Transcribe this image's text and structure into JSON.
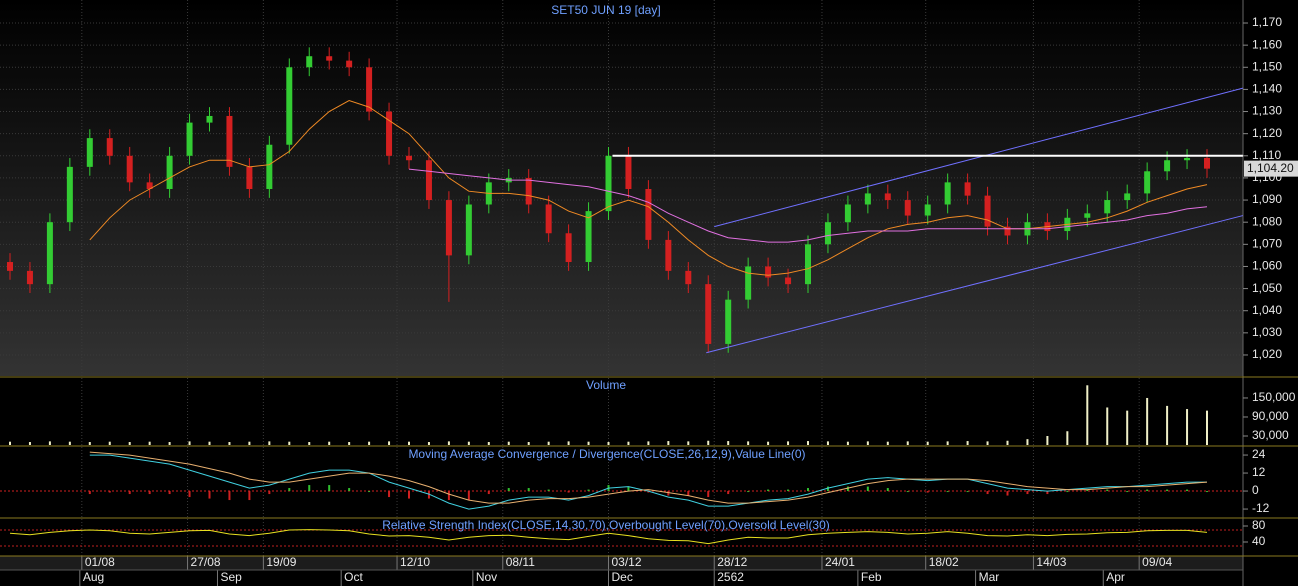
{
  "chart_data": [
    {
      "type": "candlestick",
      "title": "SET50 JUN 19   [day]",
      "open": [
        1062,
        1058,
        1052,
        1080,
        1105,
        1118,
        1110,
        1098,
        1095,
        1110,
        1125,
        1128,
        1105,
        1095,
        1115,
        1150,
        1155,
        1153,
        1150,
        1130,
        1110,
        1108,
        1090,
        1065,
        1088,
        1098,
        1100,
        1088,
        1075,
        1062,
        1085,
        1110,
        1095,
        1072,
        1058,
        1052,
        1025,
        1045,
        1060,
        1055,
        1052,
        1070,
        1080,
        1088,
        1093,
        1090,
        1083,
        1088,
        1098,
        1092,
        1078,
        1074,
        1080,
        1076,
        1082,
        1084,
        1090,
        1093,
        1103,
        1108,
        1109
      ],
      "high": [
        1066,
        1062,
        1084,
        1109,
        1122,
        1122,
        1114,
        1102,
        1114,
        1129,
        1132,
        1132,
        1109,
        1119,
        1154,
        1159,
        1159,
        1157,
        1154,
        1134,
        1114,
        1112,
        1094,
        1092,
        1102,
        1104,
        1104,
        1092,
        1079,
        1089,
        1114,
        1114,
        1099,
        1076,
        1062,
        1056,
        1049,
        1064,
        1064,
        1059,
        1074,
        1084,
        1092,
        1097,
        1097,
        1094,
        1092,
        1102,
        1102,
        1096,
        1082,
        1084,
        1084,
        1086,
        1088,
        1094,
        1097,
        1107,
        1112,
        1113,
        1113
      ],
      "low": [
        1054,
        1048,
        1048,
        1076,
        1101,
        1106,
        1094,
        1091,
        1091,
        1106,
        1121,
        1101,
        1091,
        1091,
        1111,
        1146,
        1149,
        1146,
        1126,
        1106,
        1104,
        1086,
        1044,
        1061,
        1084,
        1094,
        1084,
        1071,
        1058,
        1058,
        1081,
        1091,
        1068,
        1054,
        1048,
        1021,
        1021,
        1041,
        1051,
        1048,
        1048,
        1066,
        1076,
        1084,
        1086,
        1079,
        1079,
        1084,
        1088,
        1074,
        1070,
        1070,
        1072,
        1072,
        1078,
        1080,
        1086,
        1089,
        1099,
        1104,
        1100
      ],
      "close": [
        1058,
        1052,
        1080,
        1105,
        1118,
        1110,
        1098,
        1095,
        1110,
        1125,
        1128,
        1105,
        1095,
        1115,
        1150,
        1155,
        1153,
        1150,
        1130,
        1110,
        1108,
        1090,
        1065,
        1088,
        1098,
        1100,
        1088,
        1075,
        1062,
        1085,
        1110,
        1095,
        1072,
        1058,
        1052,
        1025,
        1045,
        1060,
        1055,
        1052,
        1070,
        1080,
        1088,
        1093,
        1090,
        1083,
        1088,
        1098,
        1092,
        1078,
        1074,
        1080,
        1076,
        1082,
        1084,
        1090,
        1093,
        1103,
        1108,
        1109,
        1104.2
      ],
      "up_color": "#33cc33",
      "down_color": "#d42020",
      "series": [
        {
          "color": "#f08a24",
          "values": [
            null,
            null,
            null,
            null,
            1072,
            1082,
            1090,
            1095,
            1100,
            1105,
            1108,
            1108,
            1105,
            1106,
            1112,
            1122,
            1130,
            1135,
            1132,
            1126,
            1120,
            1110,
            1100,
            1094,
            1093,
            1093,
            1092,
            1090,
            1085,
            1082,
            1087,
            1090,
            1087,
            1080,
            1072,
            1065,
            1060,
            1057,
            1056,
            1057,
            1059,
            1063,
            1068,
            1073,
            1077,
            1079,
            1080,
            1082,
            1083,
            1081,
            1077,
            1077,
            1078,
            1079,
            1080,
            1082,
            1085,
            1089,
            1092,
            1095,
            1097
          ]
        },
        {
          "color": "#e070e0",
          "values": [
            null,
            null,
            null,
            null,
            null,
            null,
            null,
            null,
            null,
            null,
            null,
            null,
            null,
            null,
            null,
            null,
            null,
            null,
            null,
            null,
            1104,
            1103,
            1102,
            1101,
            1100,
            1099,
            1099,
            1098,
            1097,
            1096,
            1094,
            1092,
            1089,
            1084,
            1080,
            1076,
            1073,
            1072,
            1071,
            1071,
            1072,
            1074,
            1075,
            1076,
            1076,
            1076,
            1077,
            1077,
            1077,
            1077,
            1077,
            1077,
            1077,
            1078,
            1079,
            1080,
            1081,
            1083,
            1084,
            1086,
            1087
          ]
        }
      ],
      "trendlines": [
        {
          "color": "#7070ff",
          "points": [
            [
              35.3,
              1078
            ],
            [
              61.8,
              1140.6
            ]
          ]
        },
        {
          "color": "#7070ff",
          "points": [
            [
              34.9,
              1021
            ],
            [
              61.8,
              1083
            ]
          ]
        },
        {
          "color": "#ffffff",
          "points": [
            [
              30.2,
              1110
            ],
            [
              61.8,
              1110
            ]
          ]
        }
      ],
      "last_price": {
        "value": 1104.2,
        "label": "1,104.20"
      },
      "ylim": [
        1010.5,
        1180.4
      ],
      "yticks": [
        {
          "value": 1020,
          "label": "1,020"
        },
        {
          "value": 1030,
          "label": "1,030"
        },
        {
          "value": 1040,
          "label": "1,040"
        },
        {
          "value": 1050,
          "label": "1,050"
        },
        {
          "value": 1060,
          "label": "1,060"
        },
        {
          "value": 1070,
          "label": "1,070"
        },
        {
          "value": 1080,
          "label": "1,080"
        },
        {
          "value": 1090,
          "label": "1,090"
        },
        {
          "value": 1100,
          "label": "1,100"
        },
        {
          "value": 1110,
          "label": "1,110"
        },
        {
          "value": 1120,
          "label": "1,120"
        },
        {
          "value": 1130,
          "label": "1,130"
        },
        {
          "value": 1140,
          "label": "1,140"
        },
        {
          "value": 1150,
          "label": "1,150"
        },
        {
          "value": 1160,
          "label": "1,160"
        },
        {
          "value": 1170,
          "label": "1,170"
        }
      ],
      "xticks": [
        {
          "value": 3.6,
          "label": "01/08"
        },
        {
          "value": 8.9,
          "label": "27/08"
        },
        {
          "value": 12.7,
          "label": "19/09"
        },
        {
          "value": 19.4,
          "label": "12/10"
        },
        {
          "value": 24.7,
          "label": "08/11"
        },
        {
          "value": 30.0,
          "label": "03/12"
        },
        {
          "value": 35.3,
          "label": "28/12"
        },
        {
          "value": 40.7,
          "label": "24/01"
        },
        {
          "value": 45.9,
          "label": "18/02"
        },
        {
          "value": 51.3,
          "label": "14/03"
        },
        {
          "value": 56.6,
          "label": "09/04"
        }
      ],
      "xticks_months": [
        {
          "value": 3.5,
          "label": "Aug"
        },
        {
          "value": 10.4,
          "label": "Sep"
        },
        {
          "value": 16.6,
          "label": "Oct"
        },
        {
          "value": 23.2,
          "label": "Nov"
        },
        {
          "value": 30.0,
          "label": "Dec"
        },
        {
          "value": 35.3,
          "label": "2562"
        },
        {
          "value": 42.5,
          "label": "Feb"
        },
        {
          "value": 48.4,
          "label": "Mar"
        },
        {
          "value": 54.8,
          "label": "Apr"
        }
      ],
      "grid": true
    },
    {
      "type": "bar",
      "title": "Volume",
      "color": "#f0f0c8",
      "values": [
        12000,
        11000,
        13000,
        12000,
        11000,
        12000,
        11000,
        12000,
        11000,
        13000,
        12000,
        11000,
        12000,
        13000,
        12000,
        11000,
        12000,
        11000,
        12000,
        13000,
        12000,
        11000,
        13000,
        12000,
        11000,
        12000,
        11000,
        12000,
        13000,
        12000,
        11000,
        12000,
        13000,
        14000,
        13000,
        15000,
        14000,
        13000,
        12000,
        13000,
        14000,
        13000,
        12000,
        13000,
        12000,
        13000,
        12000,
        13000,
        14000,
        13000,
        15000,
        20000,
        30000,
        45000,
        190000,
        120000,
        110000,
        150000,
        125000,
        115000,
        110000
      ],
      "ylim": [
        1600,
        213000
      ],
      "yticks": [
        {
          "value": 30000,
          "label": "30,000"
        },
        {
          "value": 90000,
          "label": "90,000"
        },
        {
          "value": 150000,
          "label": "150,000"
        }
      ]
    },
    {
      "type": "macd",
      "title": "Moving Average Convergence / Divergence(CLOSE,26,12,9),Value Line(0)",
      "series": [
        {
          "color": "#40d0e0",
          "values": [
            null,
            null,
            null,
            null,
            24,
            24,
            22,
            20,
            18,
            14,
            10,
            6,
            2,
            4,
            8,
            12,
            14,
            14,
            12,
            6,
            2,
            -2,
            -8,
            -12,
            -10,
            -6,
            -4,
            -4,
            -6,
            -3,
            2,
            3,
            0,
            -4,
            -6,
            -10,
            -10,
            -8,
            -6,
            -5,
            -2,
            2,
            5,
            8,
            9,
            8,
            7,
            8,
            8,
            5,
            2,
            1,
            0,
            1,
            2,
            3,
            3,
            4,
            5,
            6,
            6
          ]
        },
        {
          "color": "#e8b070",
          "values": [
            null,
            null,
            null,
            null,
            26,
            25,
            24,
            22,
            20,
            18,
            15,
            12,
            8,
            6,
            6,
            8,
            10,
            12,
            12,
            10,
            7,
            3,
            -2,
            -6,
            -8,
            -8,
            -6,
            -5,
            -5,
            -4,
            -2,
            0,
            1,
            -1,
            -3,
            -6,
            -8,
            -8,
            -7,
            -6,
            -4,
            -1,
            2,
            5,
            7,
            8,
            8,
            8,
            8,
            7,
            5,
            3,
            2,
            1,
            1,
            2,
            3,
            3,
            4,
            5,
            6
          ]
        }
      ],
      "histogram": [
        null,
        null,
        null,
        null,
        -2,
        -1,
        -2,
        -2,
        -2,
        -4,
        -5,
        -6,
        -6,
        -2,
        2,
        4,
        4,
        2,
        0,
        -4,
        -5,
        -5,
        -6,
        -6,
        -2,
        2,
        2,
        1,
        -1,
        1,
        4,
        3,
        -1,
        -3,
        -3,
        -4,
        -2,
        0,
        1,
        1,
        2,
        3,
        3,
        3,
        2,
        0,
        -1,
        0,
        0,
        -2,
        -3,
        -2,
        -2,
        0,
        1,
        1,
        0,
        1,
        1,
        1,
        0
      ],
      "up_color": "#30c030",
      "down_color": "#d02020",
      "value_line": 0,
      "value_line_color": "#d02020",
      "ylim": [
        -17.3,
        28.7
      ],
      "yticks": [
        -12,
        0,
        12,
        24
      ]
    },
    {
      "type": "line",
      "title": "Relative Strength Index(CLOSE,14,30,70),Overbought Level(70),Oversold Level(30)",
      "series": [
        {
          "color": "#e8e020",
          "values": [
            62,
            58,
            64,
            68,
            70,
            68,
            62,
            60,
            64,
            68,
            69,
            60,
            56,
            62,
            70,
            71,
            70,
            68,
            60,
            55,
            56,
            52,
            45,
            52,
            56,
            57,
            52,
            48,
            46,
            54,
            62,
            56,
            48,
            44,
            43,
            36,
            45,
            52,
            50,
            50,
            58,
            62,
            64,
            66,
            64,
            60,
            62,
            66,
            62,
            56,
            55,
            58,
            56,
            59,
            60,
            63,
            64,
            68,
            69,
            69,
            64
          ]
        }
      ],
      "levels": [
        70,
        30
      ],
      "level_color": "#c02020",
      "ylim": [
        7.5,
        95
      ],
      "yticks": [
        40,
        80
      ]
    }
  ]
}
